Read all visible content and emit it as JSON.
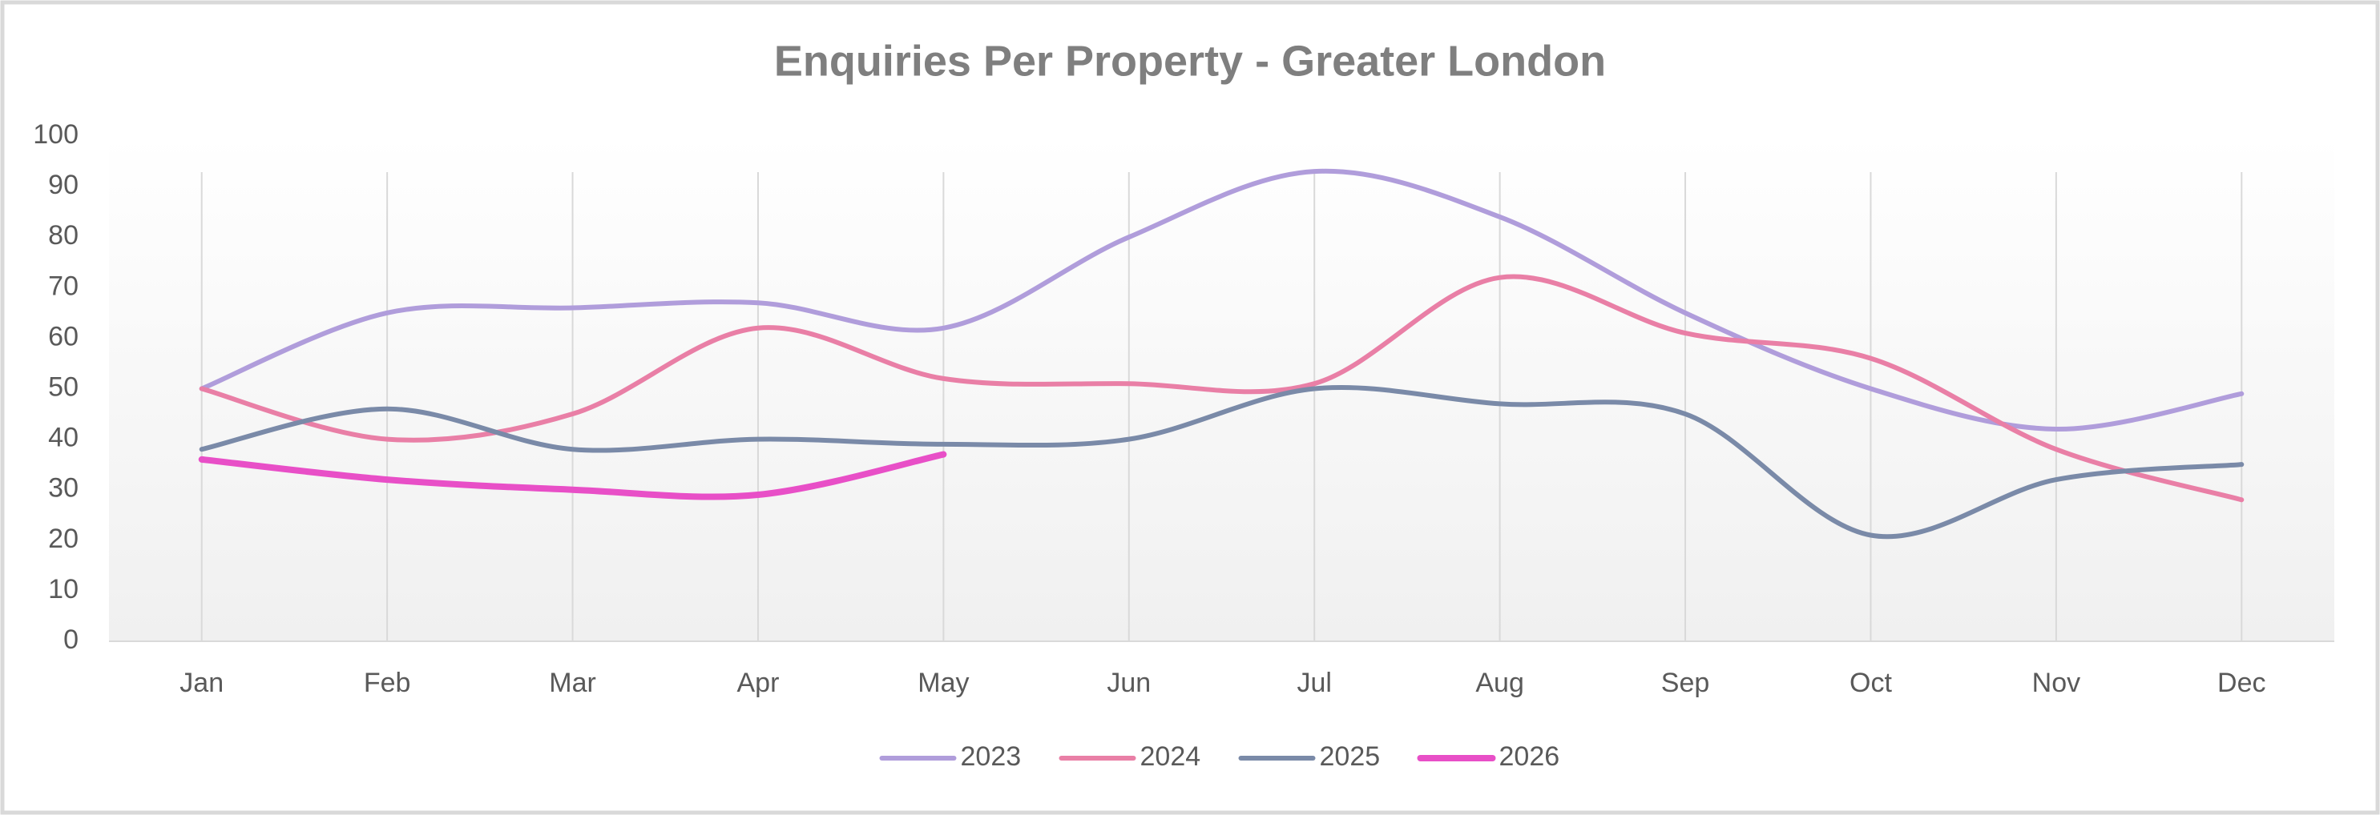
{
  "chart_data": {
    "type": "line",
    "title": "Enquiries Per Property - Greater London",
    "categories": [
      "Jan",
      "Feb",
      "Mar",
      "Apr",
      "May",
      "Jun",
      "Jul",
      "Aug",
      "Sep",
      "Oct",
      "Nov",
      "Dec"
    ],
    "series": [
      {
        "name": "2023",
        "color": "#b09ddb",
        "values": [
          50,
          65,
          66,
          67,
          62,
          80,
          93,
          84,
          65,
          50,
          42,
          49
        ]
      },
      {
        "name": "2024",
        "color": "#e97fa6",
        "values": [
          50,
          40,
          45,
          62,
          52,
          51,
          51,
          72,
          61,
          56,
          38,
          28
        ]
      },
      {
        "name": "2025",
        "color": "#7a8aa8",
        "values": [
          38,
          46,
          38,
          40,
          39,
          40,
          50,
          47,
          45,
          21,
          32,
          35
        ]
      },
      {
        "name": "2026",
        "color": "#e84fc7",
        "values": [
          36,
          32,
          30,
          29,
          37,
          null,
          null,
          null,
          null,
          null,
          null,
          null
        ]
      }
    ],
    "ylim": [
      0,
      100
    ],
    "yticks": [
      0,
      10,
      20,
      30,
      40,
      50,
      60,
      70,
      80,
      90,
      100
    ],
    "grid": true,
    "smooth": true,
    "legend": "bottom"
  }
}
